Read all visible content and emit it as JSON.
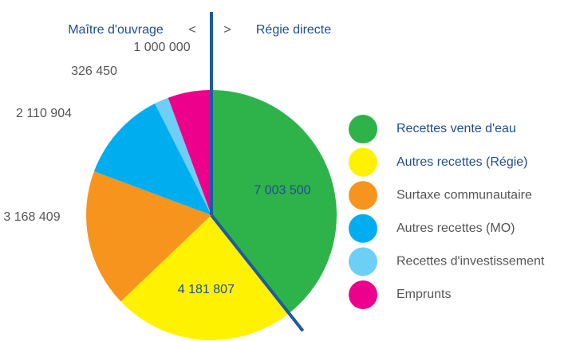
{
  "chart_data": {
    "type": "pie",
    "header": {
      "left": "Maître d'ouvrage",
      "left_sign": "<",
      "right_sign": ">",
      "right": "Régie directe"
    },
    "categories": [
      "Recettes vente d'eau",
      "Autres recettes (Régie)",
      "Surtaxe communautaire",
      "Autres recettes (MO)",
      "Recettes d'investissement",
      "Emprunts"
    ],
    "values": [
      7003500,
      4181807,
      3168409,
      2110904,
      326450,
      1000000
    ],
    "value_labels": [
      "7 003 500",
      "4 181 807",
      "3 168 409",
      "2 110 904",
      "326 450",
      "1 000 000"
    ],
    "colors": [
      "#2db34a",
      "#fff200",
      "#f7941d",
      "#00aeef",
      "#6dcff6",
      "#ec008c"
    ],
    "start_angle": 0,
    "direction": "clockwise",
    "legend": "right"
  }
}
